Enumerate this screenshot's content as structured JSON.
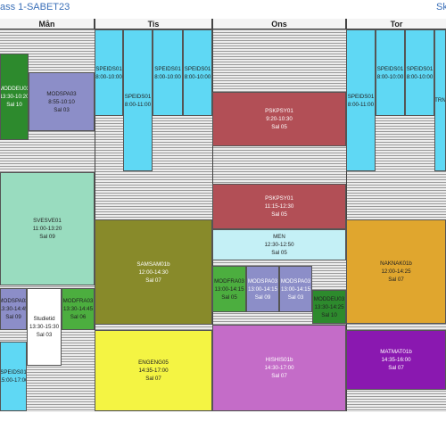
{
  "header": {
    "title": "ass 1-SABET23",
    "right_text": "Sk"
  },
  "days": [
    "Mån",
    "Tis",
    "Ons",
    "Tor"
  ],
  "colors": {
    "speids": "#5fd8f4",
    "modspa": "#8c8ec8",
    "modfra": "#4cae3f",
    "modeu": "#2d8a2d",
    "svesve": "#99dcbf",
    "samsam": "#888a2a",
    "engeng": "#f4f443",
    "hishis": "#c46cc8",
    "pskpsy": "#b24f56",
    "men": "#c4f0f6",
    "naknak": "#e0a62e",
    "matmat": "#8a18b0",
    "studie": "#ffffff",
    "trn": "#5fd8f4"
  },
  "events": [
    {
      "course": "MODDEU03",
      "time": "13:30-10:20",
      "room": "Sal 10"
    },
    {
      "course": "MODSPA03",
      "time": "8:55-10:10",
      "room": "Sal 03"
    },
    {
      "course": "SVESVE01",
      "time": "11:00-13:20",
      "room": "Sal 09"
    },
    {
      "course": "MODSPA03",
      "time": "13:30-14:45",
      "room": "Sal 09"
    },
    {
      "course": "Studietid",
      "time": "13:30-15:30",
      "room": "Sal 03"
    },
    {
      "course": "MODFRA03",
      "time": "13:30-14:45",
      "room": "Sal 06"
    },
    {
      "course": "SPEIDS01",
      "time": "15:00-17:00",
      "room": ""
    },
    {
      "course": "SPEIDS01",
      "time": "8:00-10:00",
      "room": ""
    },
    {
      "course": "SPEIDS01",
      "time": "8:00-11:00",
      "room": ""
    },
    {
      "course": "SPEIDS01",
      "time": "8:00-10:00",
      "room": ""
    },
    {
      "course": "SPEIDS01",
      "time": "8:00-10:00",
      "room": ""
    },
    {
      "course": "SAMSAM01b",
      "time": "12:00-14:30",
      "room": "Sal 07"
    },
    {
      "course": "ENGENG05",
      "time": "14:35-17:00",
      "room": "Sal 07"
    },
    {
      "course": "PSKPSY01",
      "time": "9:20-10:30",
      "room": "Sal 05"
    },
    {
      "course": "PSKPSY01",
      "time": "11:15-12:30",
      "room": "Sal 05"
    },
    {
      "course": "MEN",
      "time": "12:30-12:50",
      "room": "Sal 05"
    },
    {
      "course": "MODFRA03",
      "time": "13:00-14:15",
      "room": "Sal 05"
    },
    {
      "course": "MODSPA03",
      "time": "13:00-14:15",
      "room": "Sal 09"
    },
    {
      "course": "MODSPA03",
      "time": "13:00-14:15",
      "room": "Sal 03"
    },
    {
      "course": "MODDEU03",
      "time": "13:30-14:25",
      "room": "Sal 10"
    },
    {
      "course": "HISHIS01b",
      "time": "14:30-17:00",
      "room": "Sal 07"
    },
    {
      "course": "SPEIDS01",
      "time": "8:00-11:00",
      "room": ""
    },
    {
      "course": "SPEIDS01",
      "time": "8:00-10:00",
      "room": ""
    },
    {
      "course": "SPEIDS01",
      "time": "8:00-10:00",
      "room": ""
    },
    {
      "course": "TRN",
      "time": "",
      "room": ""
    },
    {
      "course": "NAKNAK01b",
      "time": "12:00-14:25",
      "room": "Sal 07"
    },
    {
      "course": "MATMAT01b",
      "time": "14:35-16:00",
      "room": "Sal 07"
    }
  ]
}
